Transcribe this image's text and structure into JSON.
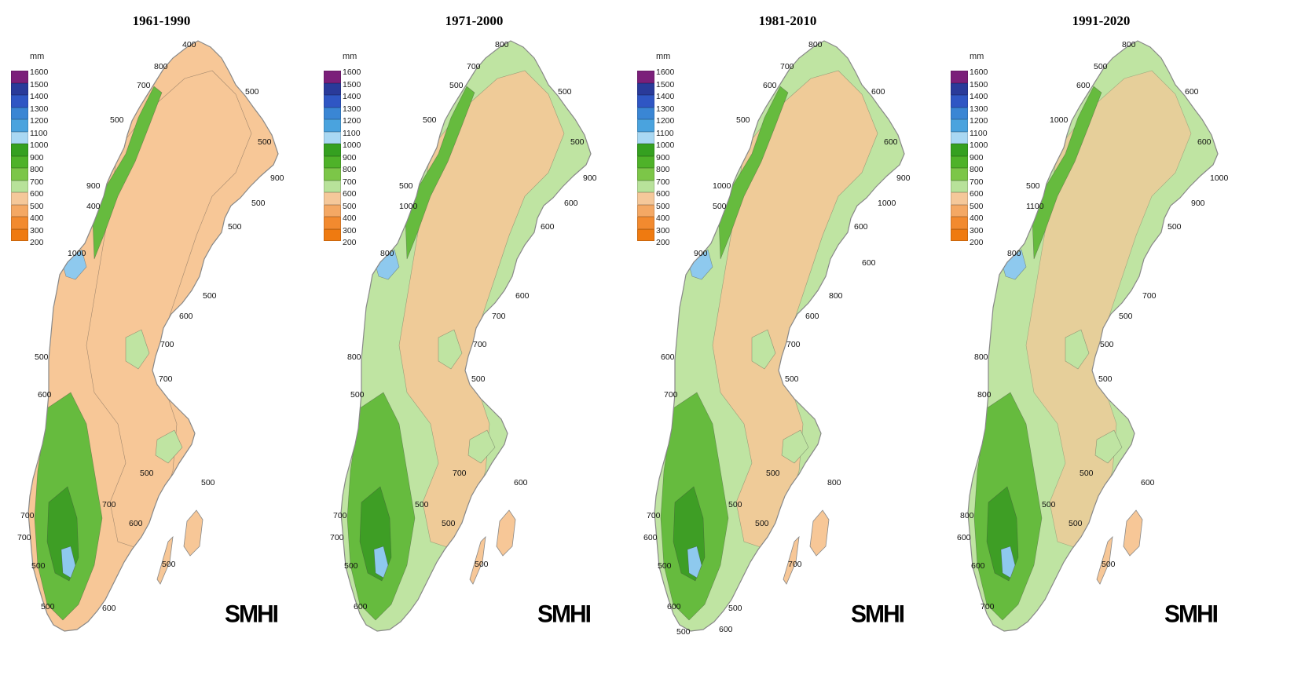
{
  "legend": {
    "unit": "mm",
    "classes": [
      {
        "label": "1600",
        "color": "#7b1f7a"
      },
      {
        "label": "1500",
        "color": "#2a3a9a"
      },
      {
        "label": "1400",
        "color": "#2f56c4"
      },
      {
        "label": "1300",
        "color": "#3a86d4"
      },
      {
        "label": "1200",
        "color": "#4aa3de"
      },
      {
        "label": "1100",
        "color": "#a9d8f3"
      },
      {
        "label": "1000",
        "color": "#35a020"
      },
      {
        "label": "900",
        "color": "#4fb229"
      },
      {
        "label": "800",
        "color": "#7cc648"
      },
      {
        "label": "700",
        "color": "#b8e29a"
      },
      {
        "label": "600",
        "color": "#f5c89a"
      },
      {
        "label": "500",
        "color": "#f4a864"
      },
      {
        "label": "400",
        "color": "#f28a2f"
      },
      {
        "label": "300",
        "color": "#ef7a10"
      },
      {
        "label": "200",
        "color": "#ffffff"
      }
    ]
  },
  "colors": {
    "low": "#f7c797",
    "mid": "#bfe4a2",
    "high": "#66bb3e",
    "veryhigh": "#3e9e25",
    "wet": "#8ec9ee",
    "coast": "#888888"
  },
  "logo": "SMHI",
  "panels": [
    {
      "title": "1961-1990",
      "labels": [
        "400",
        "800",
        "700",
        "500",
        "500",
        "500",
        "900",
        "900",
        "400",
        "500",
        "1000",
        "500",
        "500",
        "600",
        "700",
        "500",
        "700",
        "600",
        "500",
        "500",
        "700",
        "700",
        "600",
        "700",
        "500",
        "500",
        "500",
        "600"
      ]
    },
    {
      "title": "1971-2000",
      "labels": [
        "800",
        "700",
        "500",
        "500",
        "500",
        "500",
        "900",
        "500",
        "1000",
        "600",
        "800",
        "600",
        "600",
        "700",
        "700",
        "800",
        "500",
        "500",
        "700",
        "600",
        "500",
        "700",
        "500",
        "700",
        "500",
        "500",
        "600"
      ]
    },
    {
      "title": "1981-2010",
      "labels": [
        "800",
        "700",
        "600",
        "600",
        "500",
        "600",
        "900",
        "1000",
        "500",
        "1000",
        "900",
        "600",
        "800",
        "600",
        "700",
        "600",
        "500",
        "700",
        "500",
        "800",
        "500",
        "700",
        "500",
        "600",
        "700",
        "500",
        "600",
        "500",
        "500",
        "600",
        "600"
      ]
    },
    {
      "title": "1991-2020",
      "labels": [
        "800",
        "500",
        "600",
        "600",
        "1000",
        "600",
        "1000",
        "500",
        "1100",
        "900",
        "800",
        "500",
        "700",
        "500",
        "500",
        "800",
        "500",
        "800",
        "500",
        "600",
        "500",
        "800",
        "500",
        "600",
        "500",
        "600",
        "700"
      ]
    }
  ]
}
